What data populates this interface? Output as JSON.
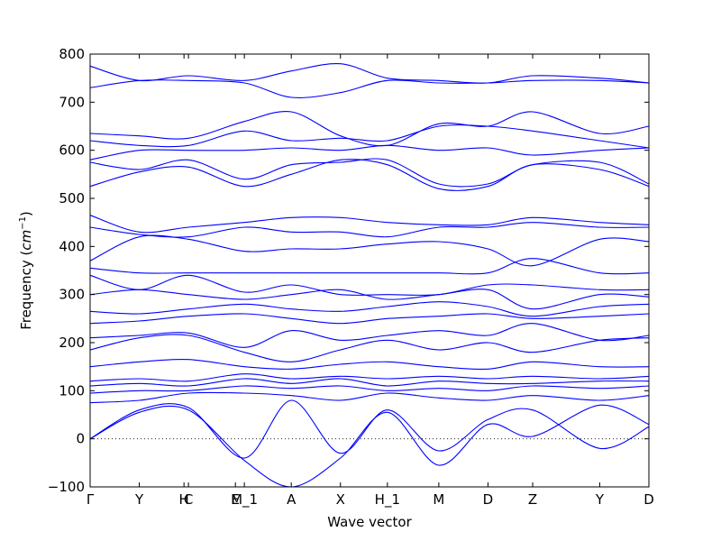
{
  "chart_data": {
    "type": "line",
    "title": "",
    "xlabel": "Wave vector",
    "ylabel_main": "Frequency (",
    "ylabel_unit_base": "cm",
    "ylabel_unit_exp": "−1",
    "ylabel_close": ")",
    "ylim": [
      -100,
      800
    ],
    "yticks": [
      -100,
      0,
      100,
      200,
      300,
      400,
      500,
      600,
      700,
      800
    ],
    "xlim": [
      0,
      12.5
    ],
    "xticks": [
      {
        "label": "Γ",
        "x": 0
      },
      {
        "label": "Y",
        "x": 1.1
      },
      {
        "label": "H",
        "x": 2.1
      },
      {
        "label": "C",
        "x": 2.2
      },
      {
        "label": "E",
        "x": 3.25
      },
      {
        "label": "M_1",
        "x": 3.45
      },
      {
        "label": "A",
        "x": 4.5
      },
      {
        "label": "X",
        "x": 5.6
      },
      {
        "label": "H_1",
        "x": 6.65
      },
      {
        "label": "M",
        "x": 7.8
      },
      {
        "label": "D",
        "x": 8.9
      },
      {
        "label": "Z",
        "x": 9.9
      },
      {
        "label": "Y",
        "x": 11.4
      },
      {
        "label": "D",
        "x": 12.5
      }
    ],
    "zero_line": true,
    "line_color": "#0000ff",
    "bands": [
      {
        "x": [
          0,
          1.1,
          2.2,
          3.45,
          4.5,
          5.6,
          6.65,
          7.8,
          8.9,
          9.9,
          11.4,
          12.5
        ],
        "y": [
          0,
          55,
          60,
          -45,
          -100,
          -40,
          55,
          -55,
          30,
          5,
          70,
          30
        ]
      },
      {
        "x": [
          0,
          1.1,
          2.2,
          3.45,
          4.5,
          5.6,
          6.65,
          7.8,
          8.9,
          9.9,
          11.4,
          12.5
        ],
        "y": [
          0,
          60,
          65,
          -40,
          80,
          -30,
          60,
          -25,
          40,
          60,
          -20,
          25
        ]
      },
      {
        "x": [
          0,
          1.1,
          2.2,
          3.45,
          4.5,
          5.6,
          6.65,
          7.8,
          8.9,
          9.9,
          11.4,
          12.5
        ],
        "y": [
          75,
          80,
          95,
          95,
          90,
          80,
          95,
          85,
          80,
          90,
          80,
          90
        ]
      },
      {
        "x": [
          0,
          1.1,
          2.2,
          3.45,
          4.5,
          5.6,
          6.65,
          7.8,
          8.9,
          9.9,
          11.4,
          12.5
        ],
        "y": [
          95,
          100,
          100,
          110,
          105,
          110,
          100,
          105,
          100,
          110,
          105,
          110
        ]
      },
      {
        "x": [
          0,
          1.1,
          2.2,
          3.45,
          4.5,
          5.6,
          6.65,
          7.8,
          8.9,
          9.9,
          11.4,
          12.5
        ],
        "y": [
          110,
          115,
          110,
          125,
          115,
          125,
          110,
          120,
          115,
          115,
          120,
          120
        ]
      },
      {
        "x": [
          0,
          1.1,
          2.2,
          3.45,
          4.5,
          5.6,
          6.65,
          7.8,
          8.9,
          9.9,
          11.4,
          12.5
        ],
        "y": [
          120,
          125,
          120,
          135,
          125,
          130,
          125,
          130,
          125,
          130,
          125,
          130
        ]
      },
      {
        "x": [
          0,
          1.1,
          2.2,
          3.45,
          4.5,
          5.6,
          6.65,
          7.8,
          8.9,
          9.9,
          11.4,
          12.5
        ],
        "y": [
          150,
          160,
          165,
          150,
          145,
          155,
          160,
          150,
          145,
          160,
          150,
          150
        ]
      },
      {
        "x": [
          0,
          1.1,
          2.2,
          3.45,
          4.5,
          5.6,
          6.65,
          7.8,
          8.9,
          9.9,
          11.4,
          12.5
        ],
        "y": [
          185,
          210,
          215,
          180,
          160,
          185,
          205,
          185,
          200,
          180,
          205,
          210
        ]
      },
      {
        "x": [
          0,
          1.1,
          2.2,
          3.45,
          4.5,
          5.6,
          6.65,
          7.8,
          8.9,
          9.9,
          11.4,
          12.5
        ],
        "y": [
          210,
          215,
          220,
          190,
          225,
          205,
          215,
          225,
          215,
          240,
          205,
          215
        ]
      },
      {
        "x": [
          0,
          1.1,
          2.2,
          3.45,
          4.5,
          5.6,
          6.65,
          7.8,
          8.9,
          9.9,
          11.4,
          12.5
        ],
        "y": [
          240,
          245,
          255,
          260,
          250,
          240,
          250,
          255,
          260,
          250,
          255,
          260
        ]
      },
      {
        "x": [
          0,
          1.1,
          2.2,
          3.45,
          4.5,
          5.6,
          6.65,
          7.8,
          8.9,
          9.9,
          11.4,
          12.5
        ],
        "y": [
          265,
          260,
          270,
          280,
          270,
          265,
          275,
          285,
          275,
          255,
          275,
          280
        ]
      },
      {
        "x": [
          0,
          1.1,
          2.2,
          3.45,
          4.5,
          5.6,
          6.65,
          7.8,
          8.9,
          9.9,
          11.4,
          12.5
        ],
        "y": [
          300,
          310,
          300,
          290,
          300,
          310,
          290,
          300,
          310,
          270,
          300,
          295
        ]
      },
      {
        "x": [
          0,
          1.1,
          2.2,
          3.45,
          4.5,
          5.6,
          6.65,
          7.8,
          8.9,
          9.9,
          11.4,
          12.5
        ],
        "y": [
          340,
          310,
          340,
          305,
          320,
          300,
          300,
          300,
          320,
          320,
          310,
          310
        ]
      },
      {
        "x": [
          0,
          1.1,
          2.2,
          3.45,
          4.5,
          5.6,
          6.65,
          7.8,
          8.9,
          9.9,
          11.4,
          12.5
        ],
        "y": [
          355,
          345,
          345,
          345,
          345,
          345,
          345,
          345,
          345,
          375,
          345,
          345
        ]
      },
      {
        "x": [
          0,
          1.1,
          2.2,
          3.45,
          4.5,
          5.6,
          6.65,
          7.8,
          8.9,
          9.9,
          11.4,
          12.5
        ],
        "y": [
          370,
          420,
          415,
          390,
          395,
          395,
          405,
          410,
          395,
          360,
          415,
          410
        ]
      },
      {
        "x": [
          0,
          1.1,
          2.2,
          3.45,
          4.5,
          5.6,
          6.65,
          7.8,
          8.9,
          9.9,
          11.4,
          12.5
        ],
        "y": [
          440,
          425,
          420,
          440,
          430,
          430,
          420,
          440,
          440,
          450,
          440,
          440
        ]
      },
      {
        "x": [
          0,
          1.1,
          2.2,
          3.45,
          4.5,
          5.6,
          6.65,
          7.8,
          8.9,
          9.9,
          11.4,
          12.5
        ],
        "y": [
          465,
          430,
          440,
          450,
          460,
          460,
          450,
          445,
          445,
          460,
          450,
          445
        ]
      },
      {
        "x": [
          0,
          1.1,
          2.2,
          3.45,
          4.5,
          5.6,
          6.65,
          7.8,
          8.9,
          9.9,
          11.4,
          12.5
        ],
        "y": [
          525,
          555,
          565,
          525,
          550,
          580,
          570,
          520,
          525,
          570,
          560,
          525
        ]
      },
      {
        "x": [
          0,
          1.1,
          2.2,
          3.45,
          4.5,
          5.6,
          6.65,
          7.8,
          8.9,
          9.9,
          11.4,
          12.5
        ],
        "y": [
          575,
          560,
          580,
          540,
          570,
          575,
          580,
          530,
          530,
          570,
          575,
          530
        ]
      },
      {
        "x": [
          0,
          1.1,
          2.2,
          3.45,
          4.5,
          5.6,
          6.65,
          7.8,
          8.9,
          9.9,
          11.4,
          12.5
        ],
        "y": [
          580,
          600,
          600,
          600,
          605,
          600,
          610,
          600,
          605,
          590,
          600,
          605
        ]
      },
      {
        "x": [
          0,
          1.1,
          2.2,
          3.45,
          4.5,
          5.6,
          6.65,
          7.8,
          8.9,
          9.9,
          11.4,
          12.5
        ],
        "y": [
          620,
          610,
          610,
          640,
          620,
          625,
          620,
          650,
          650,
          640,
          620,
          605
        ]
      },
      {
        "x": [
          0,
          1.1,
          2.2,
          3.45,
          4.5,
          5.6,
          6.65,
          7.8,
          8.9,
          9.9,
          11.4,
          12.5
        ],
        "y": [
          635,
          630,
          625,
          660,
          680,
          630,
          610,
          655,
          650,
          680,
          635,
          650
        ]
      },
      {
        "x": [
          0,
          1.1,
          2.2,
          3.45,
          4.5,
          5.6,
          6.65,
          7.8,
          8.9,
          9.9,
          11.4,
          12.5
        ],
        "y": [
          730,
          745,
          745,
          740,
          710,
          720,
          745,
          740,
          740,
          745,
          745,
          740
        ]
      },
      {
        "x": [
          0,
          1.1,
          2.2,
          3.45,
          4.5,
          5.6,
          6.65,
          7.8,
          8.9,
          9.9,
          11.4,
          12.5
        ],
        "y": [
          775,
          745,
          755,
          745,
          765,
          780,
          750,
          745,
          740,
          755,
          750,
          740
        ]
      }
    ]
  }
}
